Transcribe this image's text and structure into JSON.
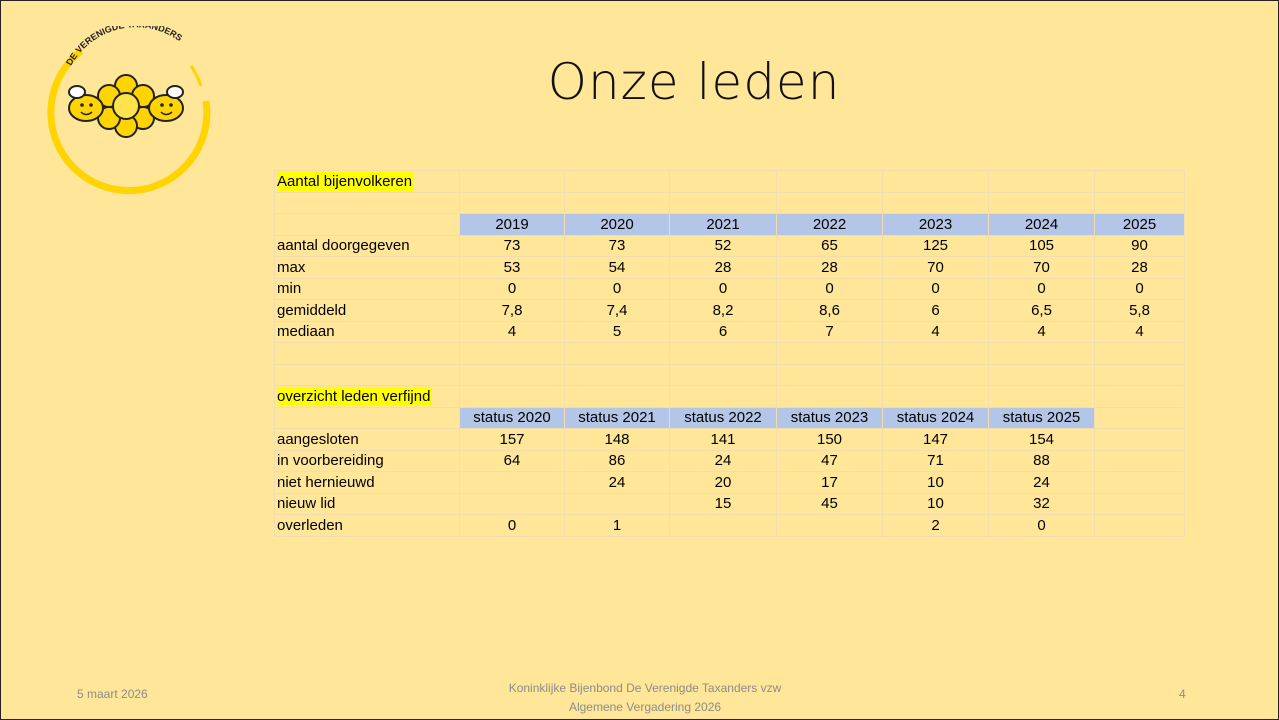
{
  "logo": {
    "text": "DE VERENIGDE TAXANDERS"
  },
  "header": {
    "title": "Onze leden"
  },
  "tables": [
    {
      "title": "Aantal bijenvolkeren",
      "columns": [
        2019,
        2020,
        2021,
        2022,
        2023,
        2024,
        2025
      ],
      "rows": [
        {
          "label": "aantal doorgegeven",
          "values": [
            73,
            73,
            52,
            65,
            125,
            105,
            90
          ]
        },
        {
          "label": "max",
          "values": [
            53,
            54,
            28,
            28,
            70,
            70,
            28
          ]
        },
        {
          "label": "min",
          "values": [
            0,
            0,
            0,
            0,
            0,
            0,
            0
          ]
        },
        {
          "label": "gemiddeld",
          "values": [
            "7,8",
            "7,4",
            "8,2",
            "8,6",
            6,
            "6,5",
            "5,8"
          ]
        },
        {
          "label": "mediaan",
          "values": [
            4,
            5,
            6,
            7,
            4,
            4,
            4
          ]
        }
      ]
    },
    {
      "title": "overzicht leden verfijnd",
      "columns": [
        "status 2020",
        "status 2021",
        "status 2022",
        "status 2023",
        "status 2024",
        "status 2025"
      ],
      "rows": [
        {
          "label": "aangesloten",
          "values": [
            157,
            148,
            141,
            150,
            147,
            154
          ]
        },
        {
          "label": "in voorbereiding",
          "values": [
            64,
            86,
            24,
            47,
            71,
            88
          ]
        },
        {
          "label": "niet hernieuwd",
          "values": [
            null,
            24,
            20,
            17,
            10,
            24
          ]
        },
        {
          "label": "nieuw lid",
          "values": [
            null,
            null,
            15,
            45,
            10,
            32
          ]
        },
        {
          "label": "overleden",
          "values": [
            0,
            1,
            null,
            null,
            2,
            0
          ]
        }
      ]
    }
  ],
  "footer": {
    "date": "5 maart 2026",
    "lines": [
      "Koninklijke Bijenbond De Verenigde Taxanders vzw",
      "Algemene Vergadering 2026"
    ],
    "page": 4
  }
}
